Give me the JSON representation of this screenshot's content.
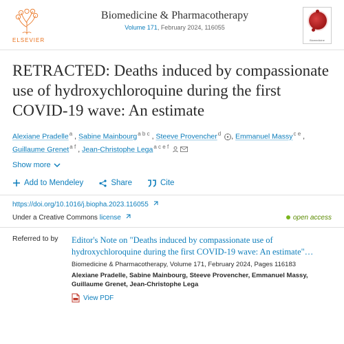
{
  "publisher": {
    "name": "ELSEVIER"
  },
  "journal": {
    "name": "Biomedicine & Pharmacotherapy",
    "volume_link": "Volume 171",
    "issue_rest": ", February 2024, 116055",
    "cover_caption": "Biomedicine"
  },
  "article": {
    "title": "RETRACTED: Deaths induced by compassionate use of hydroxychloroquine during the first COVID-19 wave: An estimate"
  },
  "authors": [
    {
      "name": "Alexiane Pradelle",
      "aff": "a",
      "orcid": false,
      "corresp": false
    },
    {
      "name": "Sabine Mainbourg",
      "aff": "a b c",
      "orcid": false,
      "corresp": false
    },
    {
      "name": "Steeve Provencher",
      "aff": "d",
      "orcid": true,
      "corresp": false
    },
    {
      "name": "Emmanuel Massy",
      "aff": "c e",
      "orcid": false,
      "corresp": false
    },
    {
      "name": "Guillaume Grenet",
      "aff": "a f",
      "orcid": false,
      "corresp": false
    },
    {
      "name": "Jean-Christophe Lega",
      "aff": "a c e f",
      "orcid": false,
      "corresp": true
    }
  ],
  "ui": {
    "show_more": "Show more",
    "add_mendeley": "Add to Mendeley",
    "share": "Share",
    "cite": "Cite"
  },
  "doi": "https://doi.org/10.1016/j.biopha.2023.116055",
  "license": {
    "prefix": "Under a Creative Commons ",
    "link": "license"
  },
  "open_access": "open access",
  "referred": {
    "label": "Referred to by",
    "title": "Editor's Note on \"Deaths induced by compassionate use of hydroxychloroquine during the first COVID-19 wave: An estimate\"…",
    "citation": "Biomedicine & Pharmacotherapy, Volume 171, February 2024, Pages 116183",
    "authors": "Alexiane Pradelle, Sabine Mainbourg, Steeve Provencher, Emmanuel Massy, Guillaume Grenet, Jean-Christophe Lega",
    "view_pdf": "View PDF"
  },
  "colors": {
    "link": "#0c7dbb",
    "publisher": "#e9711c",
    "oa_green": "#7ab51d",
    "border": "#e0e0e0",
    "text": "#2a2a2a"
  }
}
